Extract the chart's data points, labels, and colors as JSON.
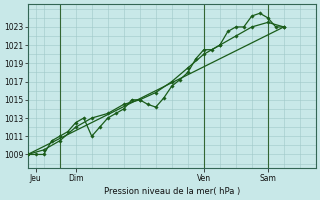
{
  "background_color": "#c8e8e8",
  "plot_bg_color": "#c8e8e8",
  "grid_color": "#a0c8c8",
  "line_color": "#1a5c1a",
  "marker_color": "#1a5c1a",
  "xlabel": "Pression niveau de la mer( hPa )",
  "ylabel_ticks": [
    1009,
    1011,
    1013,
    1015,
    1017,
    1019,
    1021,
    1023
  ],
  "ylim": [
    1007.5,
    1025.5
  ],
  "xlim": [
    0,
    108
  ],
  "day_labels": [
    "Jeu",
    "Dim",
    "Ven",
    "Sam"
  ],
  "day_positions": [
    3,
    18,
    66,
    90
  ],
  "vline_positions": [
    12,
    66,
    90
  ],
  "series1": [
    [
      0,
      1009
    ],
    [
      3,
      1009
    ],
    [
      6,
      1009
    ],
    [
      9,
      1010.5
    ],
    [
      12,
      1011
    ],
    [
      15,
      1011.5
    ],
    [
      18,
      1012.5
    ],
    [
      21,
      1013
    ],
    [
      24,
      1011
    ],
    [
      27,
      1012
    ],
    [
      30,
      1013
    ],
    [
      33,
      1013.5
    ],
    [
      36,
      1014
    ],
    [
      39,
      1015
    ],
    [
      42,
      1015
    ],
    [
      45,
      1014.5
    ],
    [
      48,
      1014.2
    ],
    [
      51,
      1015.2
    ],
    [
      54,
      1016.5
    ],
    [
      57,
      1017.2
    ],
    [
      60,
      1018
    ],
    [
      63,
      1019.5
    ],
    [
      66,
      1020.5
    ],
    [
      69,
      1020.5
    ],
    [
      72,
      1021
    ],
    [
      75,
      1022.5
    ],
    [
      78,
      1023
    ],
    [
      81,
      1023
    ],
    [
      84,
      1024.2
    ],
    [
      87,
      1024.5
    ],
    [
      90,
      1024
    ],
    [
      93,
      1023
    ],
    [
      96,
      1023
    ]
  ],
  "series2": [
    [
      0,
      1009
    ],
    [
      6,
      1009.5
    ],
    [
      12,
      1010.5
    ],
    [
      18,
      1012
    ],
    [
      24,
      1013
    ],
    [
      30,
      1013.5
    ],
    [
      36,
      1014.5
    ],
    [
      42,
      1015
    ],
    [
      48,
      1015.8
    ],
    [
      54,
      1017
    ],
    [
      60,
      1018.5
    ],
    [
      66,
      1020
    ],
    [
      72,
      1021
    ],
    [
      78,
      1022
    ],
    [
      84,
      1023
    ],
    [
      90,
      1023.5
    ],
    [
      96,
      1023
    ]
  ],
  "series3": [
    [
      0,
      1009
    ],
    [
      96,
      1023
    ]
  ]
}
